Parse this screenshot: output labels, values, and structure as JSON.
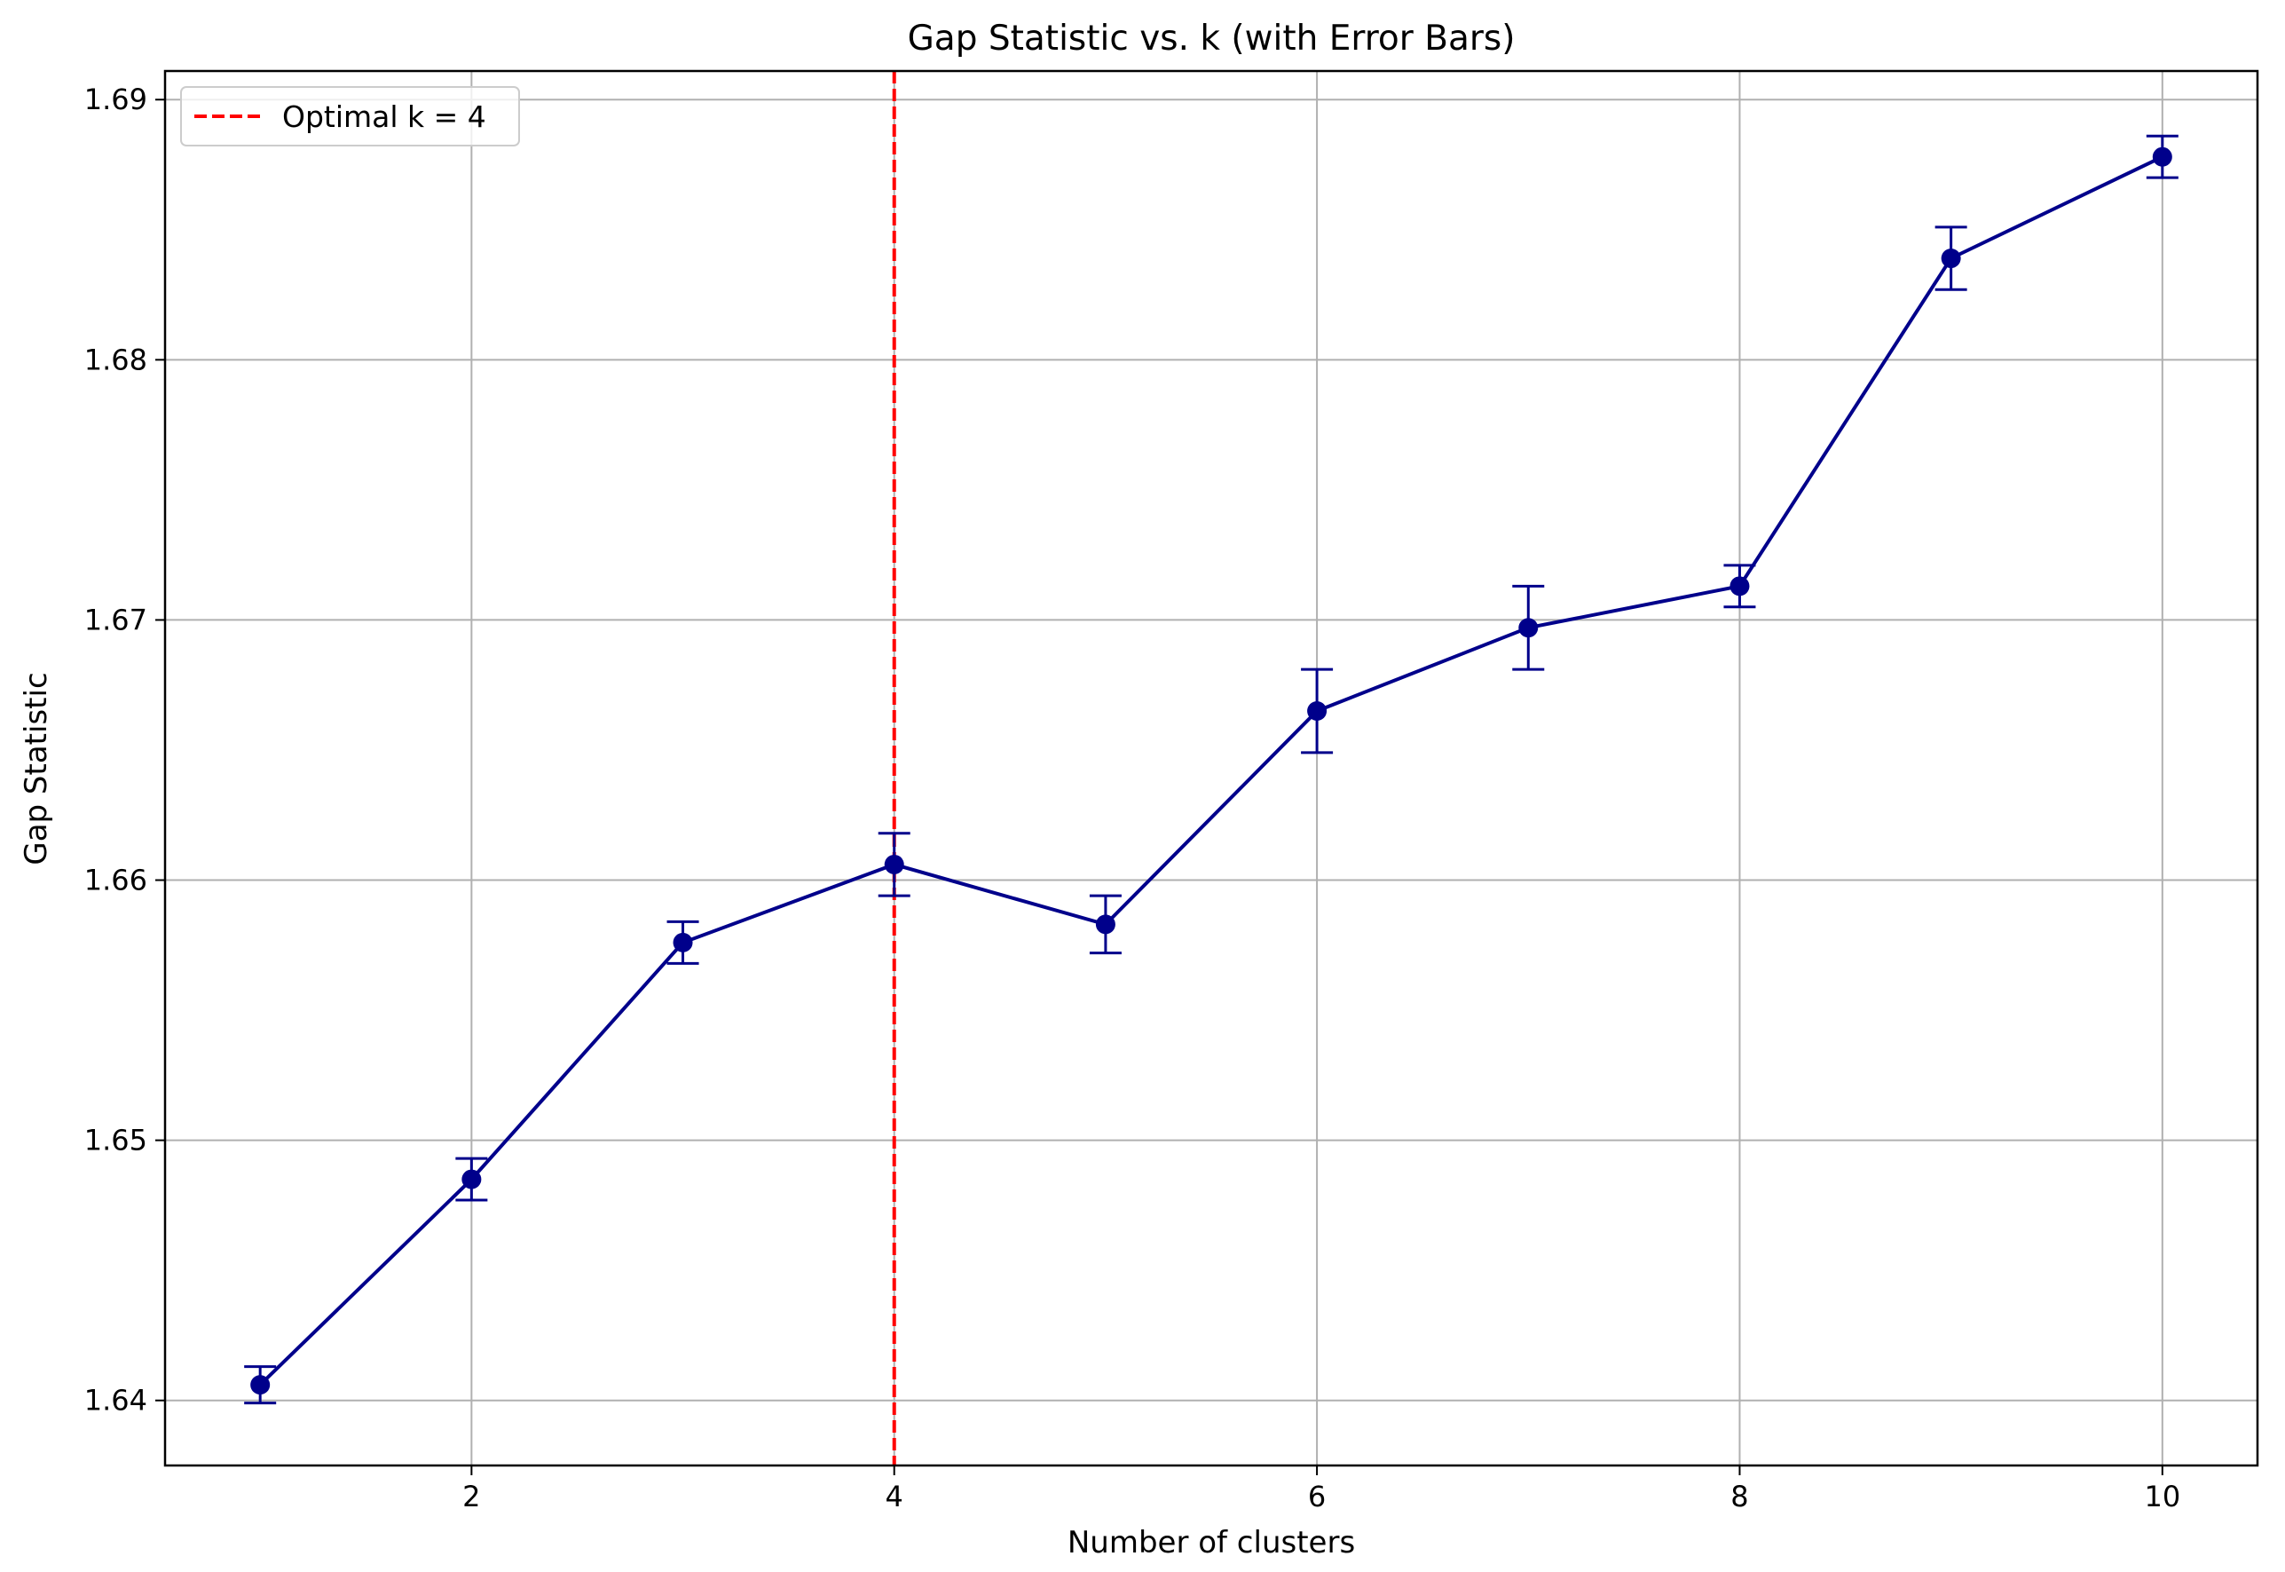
{
  "chart_data": {
    "type": "line",
    "title": "Gap Statistic vs. k (with Error Bars)",
    "xlabel": "Number of clusters",
    "ylabel": "Gap Statistic",
    "xlim": [
      0.55,
      10.45
    ],
    "ylim": [
      1.6375,
      1.6911
    ],
    "x_ticks": [
      2,
      4,
      6,
      8,
      10
    ],
    "y_ticks": [
      1.64,
      1.65,
      1.66,
      1.67,
      1.68,
      1.69
    ],
    "x_tick_labels": [
      "2",
      "4",
      "6",
      "8",
      "10"
    ],
    "y_tick_labels": [
      "1.64",
      "1.65",
      "1.66",
      "1.67",
      "1.68",
      "1.69"
    ],
    "grid": true,
    "legend": {
      "placement": "top-left",
      "entries": [
        "Optimal k = 4"
      ]
    },
    "series": [
      {
        "x": [
          1,
          2,
          3,
          4,
          5,
          6,
          7,
          8,
          9,
          10
        ],
        "y": [
          1.6406,
          1.6485,
          1.6576,
          1.6606,
          1.6583,
          1.6665,
          1.6697,
          1.6713,
          1.6839,
          1.6878
        ],
        "error": [
          0.0007,
          0.0008,
          0.0008,
          0.0012,
          0.0011,
          0.0016,
          0.0016,
          0.0008,
          0.0012,
          0.0008
        ],
        "color": "#00008b"
      }
    ],
    "vline": {
      "x": 4,
      "label": "Optimal k = 4",
      "color": "#ff0000",
      "style": "dashed"
    }
  }
}
